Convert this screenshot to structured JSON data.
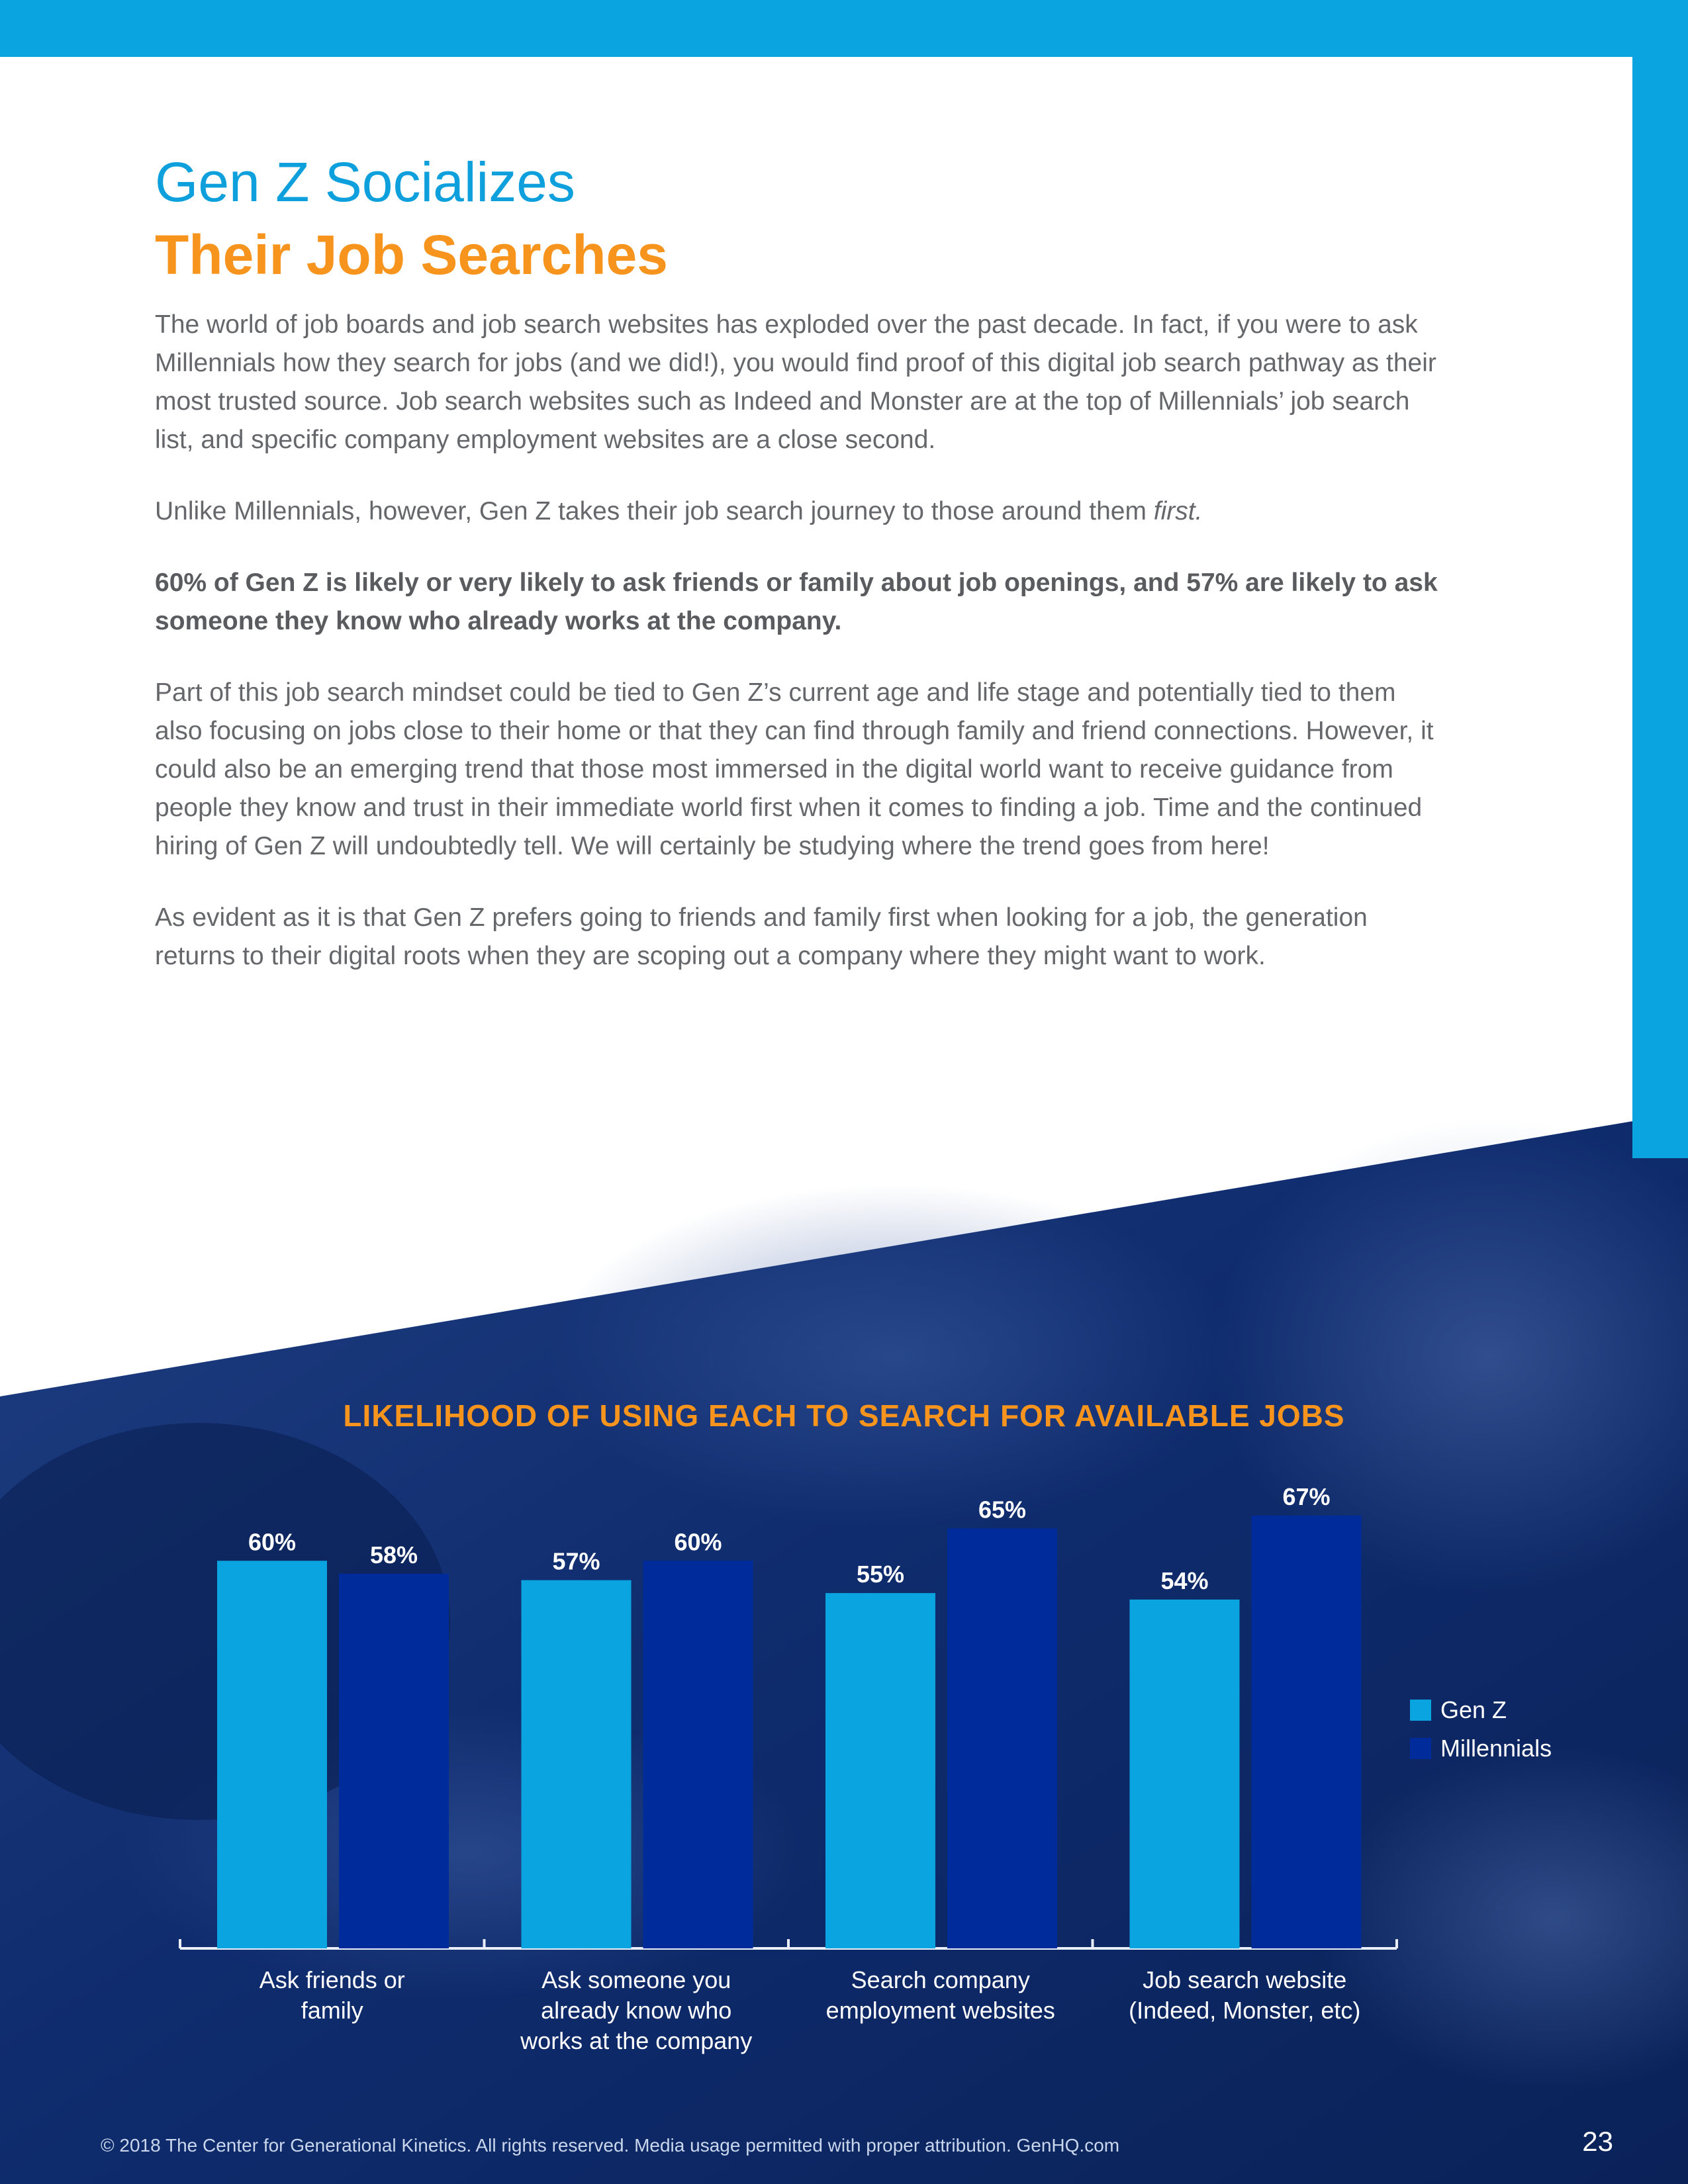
{
  "colors": {
    "accent_blue": "#0aa5e0",
    "accent_orange": "#f7941d",
    "gen_z": "#0aa5e0",
    "millennials": "#002c9b",
    "photo_overlay": "#0b2a6b"
  },
  "header": {
    "title_line1": "Gen Z Socializes",
    "title_line2": "Their Job Searches"
  },
  "body": {
    "p1": "The world of job boards and job search websites has exploded over the past decade. In fact, if you were to ask Millennials how they search for jobs (and we did!), you would find proof of this digital job search pathway as their most trusted source. Job search websites such as Indeed and Monster are at the top of Millennials’ job search list, and specific company employment websites are a close second.",
    "p2_main": "Unlike Millennials, however, Gen Z takes their job search journey to those around them ",
    "p2_em": "first.",
    "p3": "60% of Gen Z is likely or very likely to ask friends or family about job openings, and 57% are likely to ask someone they know who already works at the company.",
    "p4": "Part of this job search mindset could be tied to Gen Z’s current age and life stage and potentially tied to them also focusing on jobs close to their home or that they can find through family and friend connections. However, it could also be an emerging trend that those most immersed in the digital world want to receive guidance from people they know and trust in their immediate world first when it comes to finding a job. Time and the continued hiring of Gen Z will undoubtedly tell. We will certainly be studying where the trend goes from here!",
    "p5": "As evident as it is that Gen Z prefers going to friends and family first when looking for a job, the generation returns to their digital roots when they are scoping out a company where they might want to work."
  },
  "chart_data": {
    "type": "bar",
    "title": "LIKELIHOOD OF USING EACH TO SEARCH FOR AVAILABLE JOBS",
    "categories": [
      [
        "Ask friends or",
        "family"
      ],
      [
        "Ask someone you",
        "already know who",
        "works at the company"
      ],
      [
        "Search company",
        "employment websites"
      ],
      [
        "Job search website",
        "(Indeed, Monster, etc)"
      ]
    ],
    "series": [
      {
        "name": "Gen Z",
        "values": [
          60,
          57,
          55,
          54
        ],
        "labels": [
          "60%",
          "57%",
          "55%",
          "54%"
        ]
      },
      {
        "name": "Millennials",
        "values": [
          58,
          60,
          65,
          67
        ],
        "labels": [
          "58%",
          "60%",
          "65%",
          "67%"
        ]
      }
    ],
    "ylim": [
      0,
      67
    ],
    "legend_position": "right",
    "grid": false
  },
  "footer": {
    "copyright": "© 2018 The Center for Generational Kinetics. All rights reserved. Media usage permitted with proper attribution. GenHQ.com",
    "page_number": "23"
  }
}
